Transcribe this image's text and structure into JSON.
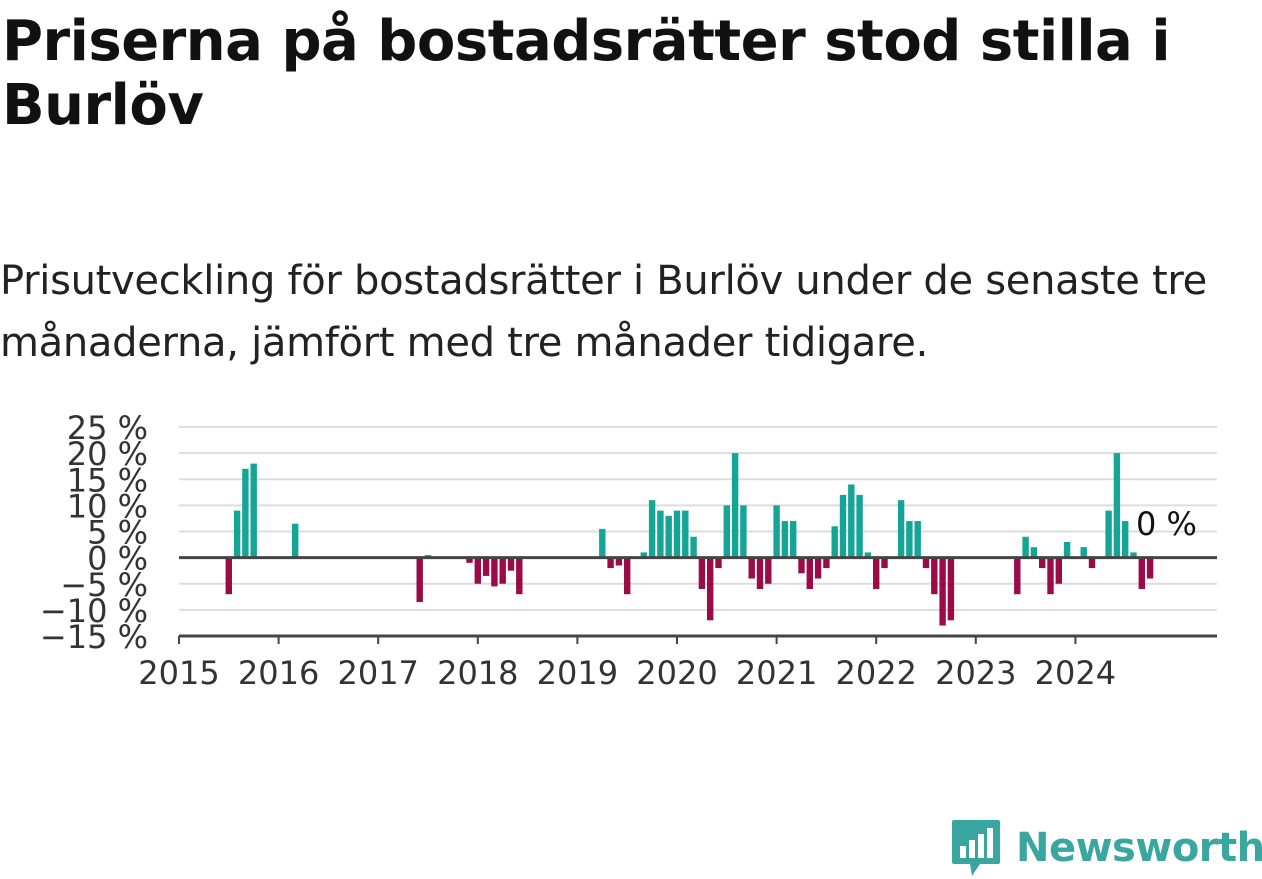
{
  "title": "Priserna på bostadsrätter stod stilla i Burlöv",
  "subtitle": "Prisutveckling för bostadsrätter i Burlöv under de senaste tre månaderna, jämfört med tre månader tidigare.",
  "brand": "Newsworthy",
  "colors": {
    "positive": "#14a596",
    "negative": "#9b0b47",
    "axis": "#444444",
    "grid": "#dddddd",
    "brand": "#3aa6a0"
  },
  "chart_data": {
    "type": "bar",
    "title": "Priserna på bostadsrätter stod stilla i Burlöv",
    "ylabel": "",
    "xlabel": "",
    "ylim": [
      -15,
      25
    ],
    "xlim": [
      "2015-01",
      "2025-05"
    ],
    "grid": true,
    "legend": "none",
    "yticks": [
      "25 %",
      "20 %",
      "15 %",
      "10 %",
      "5 %",
      "0 %",
      "−5 %",
      "−10 %",
      "−15 %"
    ],
    "xticks": [
      "2015",
      "2016",
      "2017",
      "2018",
      "2019",
      "2020",
      "2021",
      "2022",
      "2023",
      "2024"
    ],
    "end_label": "0 %",
    "bars": [
      {
        "month": "2015-07",
        "value": -7
      },
      {
        "month": "2015-08",
        "value": 9
      },
      {
        "month": "2015-09",
        "value": 17
      },
      {
        "month": "2015-10",
        "value": 18
      },
      {
        "month": "2016-03",
        "value": 6.5
      },
      {
        "month": "2017-06",
        "value": -8.5
      },
      {
        "month": "2017-07",
        "value": 0.5
      },
      {
        "month": "2017-12",
        "value": -1
      },
      {
        "month": "2018-01",
        "value": -5
      },
      {
        "month": "2018-02",
        "value": -3.5
      },
      {
        "month": "2018-03",
        "value": -5.5
      },
      {
        "month": "2018-04",
        "value": -5
      },
      {
        "month": "2018-05",
        "value": -2.5
      },
      {
        "month": "2018-06",
        "value": -7
      },
      {
        "month": "2019-04",
        "value": 5.5
      },
      {
        "month": "2019-05",
        "value": -2
      },
      {
        "month": "2019-06",
        "value": -1.5
      },
      {
        "month": "2019-07",
        "value": -7
      },
      {
        "month": "2019-09",
        "value": 1
      },
      {
        "month": "2019-10",
        "value": 11
      },
      {
        "month": "2019-11",
        "value": 9
      },
      {
        "month": "2019-12",
        "value": 8
      },
      {
        "month": "2020-01",
        "value": 9
      },
      {
        "month": "2020-02",
        "value": 9
      },
      {
        "month": "2020-03",
        "value": 4
      },
      {
        "month": "2020-04",
        "value": -6
      },
      {
        "month": "2020-05",
        "value": -12
      },
      {
        "month": "2020-06",
        "value": -2
      },
      {
        "month": "2020-07",
        "value": 10
      },
      {
        "month": "2020-08",
        "value": 20
      },
      {
        "month": "2020-09",
        "value": 10
      },
      {
        "month": "2020-10",
        "value": -4
      },
      {
        "month": "2020-11",
        "value": -6
      },
      {
        "month": "2020-12",
        "value": -5
      },
      {
        "month": "2021-01",
        "value": 10
      },
      {
        "month": "2021-02",
        "value": 7
      },
      {
        "month": "2021-03",
        "value": 7
      },
      {
        "month": "2021-04",
        "value": -3
      },
      {
        "month": "2021-05",
        "value": -6
      },
      {
        "month": "2021-06",
        "value": -4
      },
      {
        "month": "2021-07",
        "value": -2
      },
      {
        "month": "2021-08",
        "value": 6
      },
      {
        "month": "2021-09",
        "value": 12
      },
      {
        "month": "2021-10",
        "value": 14
      },
      {
        "month": "2021-11",
        "value": 12
      },
      {
        "month": "2021-12",
        "value": 1
      },
      {
        "month": "2022-01",
        "value": -6
      },
      {
        "month": "2022-02",
        "value": -2
      },
      {
        "month": "2022-04",
        "value": 11
      },
      {
        "month": "2022-05",
        "value": 7
      },
      {
        "month": "2022-06",
        "value": 7
      },
      {
        "month": "2022-07",
        "value": -2
      },
      {
        "month": "2022-08",
        "value": -7
      },
      {
        "month": "2022-09",
        "value": -13
      },
      {
        "month": "2022-10",
        "value": -12
      },
      {
        "month": "2023-06",
        "value": -7
      },
      {
        "month": "2023-07",
        "value": 4
      },
      {
        "month": "2023-08",
        "value": 2
      },
      {
        "month": "2023-09",
        "value": -2
      },
      {
        "month": "2023-10",
        "value": -7
      },
      {
        "month": "2023-11",
        "value": -5
      },
      {
        "month": "2023-12",
        "value": 3
      },
      {
        "month": "2024-02",
        "value": 2
      },
      {
        "month": "2024-03",
        "value": -2
      },
      {
        "month": "2024-05",
        "value": 9
      },
      {
        "month": "2024-06",
        "value": 20
      },
      {
        "month": "2024-07",
        "value": 7
      },
      {
        "month": "2024-08",
        "value": 1
      },
      {
        "month": "2024-09",
        "value": -6
      },
      {
        "month": "2024-10",
        "value": -4
      }
    ]
  }
}
